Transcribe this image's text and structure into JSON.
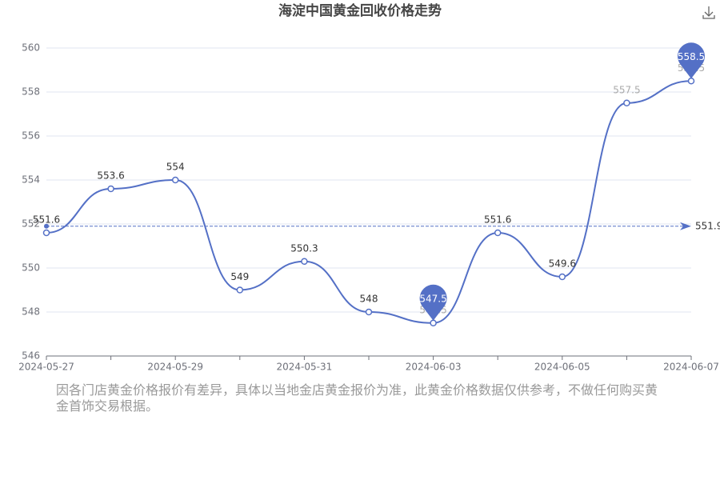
{
  "chart_data": {
    "type": "line",
    "title": "海淀中国黄金回收价格走势",
    "categories": [
      "2024-05-27",
      null,
      "2024-05-29",
      null,
      "2024-05-31",
      null,
      "2024-06-03",
      null,
      "2024-06-05",
      null,
      "2024-06-07"
    ],
    "series": [
      {
        "color": "#5470c6",
        "values": [
          551.6,
          553.6,
          554,
          549,
          550.3,
          548,
          547.5,
          551.6,
          549.6,
          557.5,
          558.5
        ]
      }
    ],
    "ylim": [
      546,
      560
    ],
    "yticks": [
      546,
      548,
      550,
      552,
      554,
      556,
      558,
      560
    ],
    "grid": true,
    "average_line": 551.9,
    "note": "因各门店黄金价格报价有差异，具体以当地金店黄金报价为准，此黄金价格数据仅供参考，不做任何购买黄金首饰交易根据。"
  }
}
